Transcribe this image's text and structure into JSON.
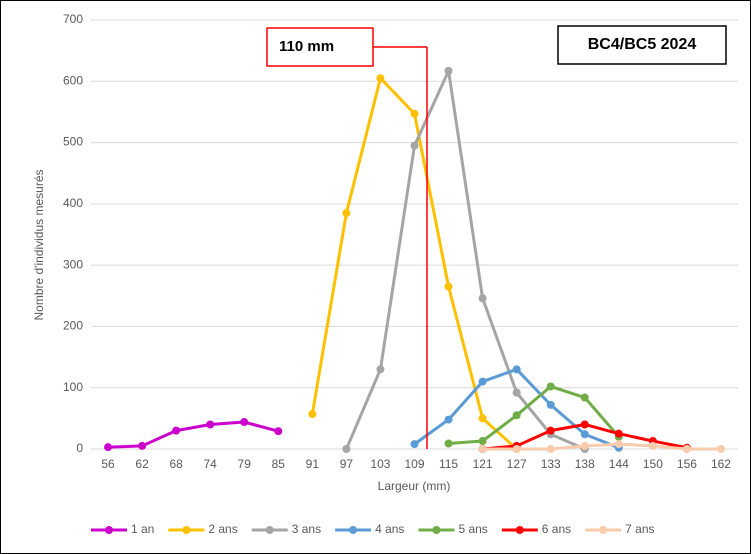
{
  "chart_data": {
    "type": "line",
    "xlabel": "Largeur (mm)",
    "ylabel": "Nombre d'individus mesurés",
    "annotations": [
      "110 mm",
      "BC4/BC5 2024"
    ],
    "categories": [
      "56",
      "62",
      "68",
      "74",
      "79",
      "85",
      "91",
      "97",
      "103",
      "109",
      "115",
      "121",
      "127",
      "133",
      "138",
      "144",
      "150",
      "156",
      "162"
    ],
    "ylim": [
      0,
      700
    ],
    "yticks": [
      0,
      100,
      200,
      300,
      400,
      500,
      600,
      700
    ],
    "grid": true,
    "series": [
      {
        "name": "1 an",
        "color": "#cc00cc",
        "values": [
          3,
          5,
          30,
          40,
          44,
          29,
          null,
          null,
          null,
          null,
          null,
          null,
          null,
          null,
          null,
          null,
          null,
          null,
          null
        ]
      },
      {
        "name": "2 ans",
        "color": "#ffc000",
        "values": [
          null,
          null,
          null,
          null,
          null,
          null,
          57,
          385,
          605,
          547,
          265,
          50,
          0,
          null,
          null,
          null,
          null,
          null,
          null
        ]
      },
      {
        "name": "3 ans",
        "color": "#a5a5a5",
        "values": [
          null,
          null,
          null,
          null,
          null,
          null,
          null,
          0,
          130,
          495,
          617,
          246,
          92,
          24,
          0,
          null,
          null,
          null,
          null
        ]
      },
      {
        "name": "4 ans",
        "color": "#5b9bd5",
        "values": [
          null,
          null,
          null,
          null,
          null,
          null,
          null,
          null,
          null,
          8,
          48,
          110,
          130,
          72,
          24,
          2,
          null,
          null,
          null
        ]
      },
      {
        "name": "5 ans",
        "color": "#70ad47",
        "values": [
          null,
          null,
          null,
          null,
          null,
          null,
          null,
          null,
          null,
          null,
          9,
          13,
          55,
          102,
          84,
          20,
          null,
          null,
          null
        ]
      },
      {
        "name": "6 ans",
        "color": "#ff0000",
        "values": [
          null,
          null,
          null,
          null,
          null,
          null,
          null,
          null,
          null,
          null,
          null,
          0,
          5,
          30,
          40,
          25,
          13,
          2,
          null
        ]
      },
      {
        "name": "7 ans",
        "color": "#f8cbad",
        "values": [
          null,
          null,
          null,
          null,
          null,
          null,
          null,
          null,
          null,
          null,
          null,
          0,
          0,
          0,
          5,
          8,
          5,
          0,
          0
        ]
      }
    ]
  }
}
